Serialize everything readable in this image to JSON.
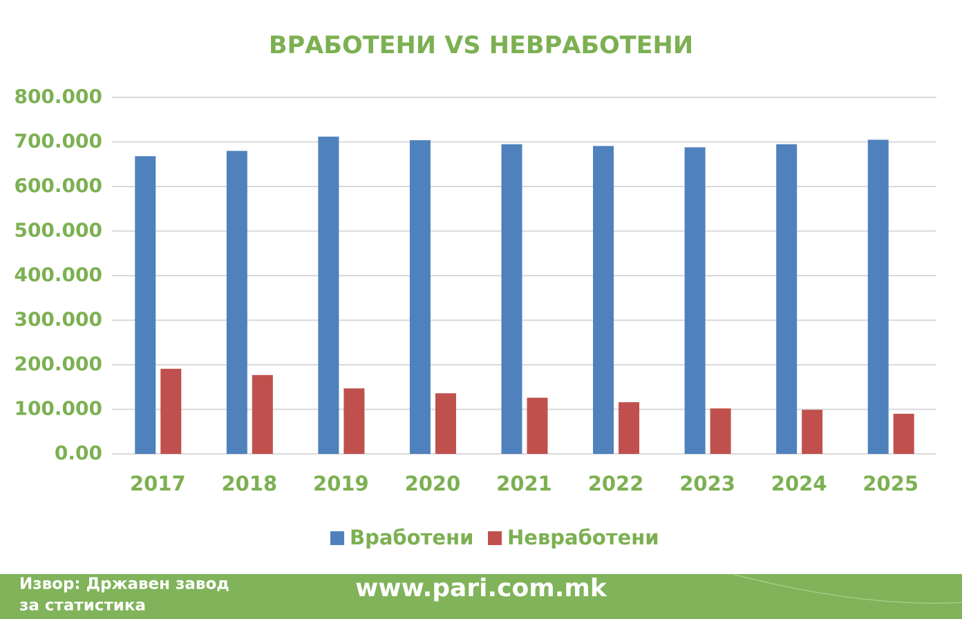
{
  "chart_data": {
    "type": "bar",
    "title": "ВРАБОТЕНИ VS НЕВРАБОТЕНИ",
    "categories": [
      "2017",
      "2018",
      "2019",
      "2020",
      "2021",
      "2022",
      "2023",
      "2024",
      "2025"
    ],
    "series": [
      {
        "name": "Вработени",
        "color": "#4f81bd",
        "values": [
          668000,
          680000,
          712000,
          704000,
          695000,
          691000,
          688000,
          695000,
          705000
        ]
      },
      {
        "name": "Невработени",
        "color": "#c0504d",
        "values": [
          191000,
          177000,
          147000,
          136000,
          126000,
          116000,
          102000,
          99000,
          90000
        ]
      }
    ],
    "ylim": [
      0,
      800000
    ],
    "yticks": [
      {
        "value": 0,
        "label": "0.00"
      },
      {
        "value": 100000,
        "label": "100.000"
      },
      {
        "value": 200000,
        "label": "200.000"
      },
      {
        "value": 300000,
        "label": "300.000"
      },
      {
        "value": 400000,
        "label": "400.000"
      },
      {
        "value": 500000,
        "label": "500.000"
      },
      {
        "value": 600000,
        "label": "600.000"
      },
      {
        "value": 700000,
        "label": "700.000"
      },
      {
        "value": 800000,
        "label": "800.000"
      }
    ],
    "grid": true,
    "legend": "bottom"
  },
  "footer": {
    "source": [
      "Извор: Државен завод",
      "за статистика"
    ],
    "website": "www.pari.com.mk"
  }
}
